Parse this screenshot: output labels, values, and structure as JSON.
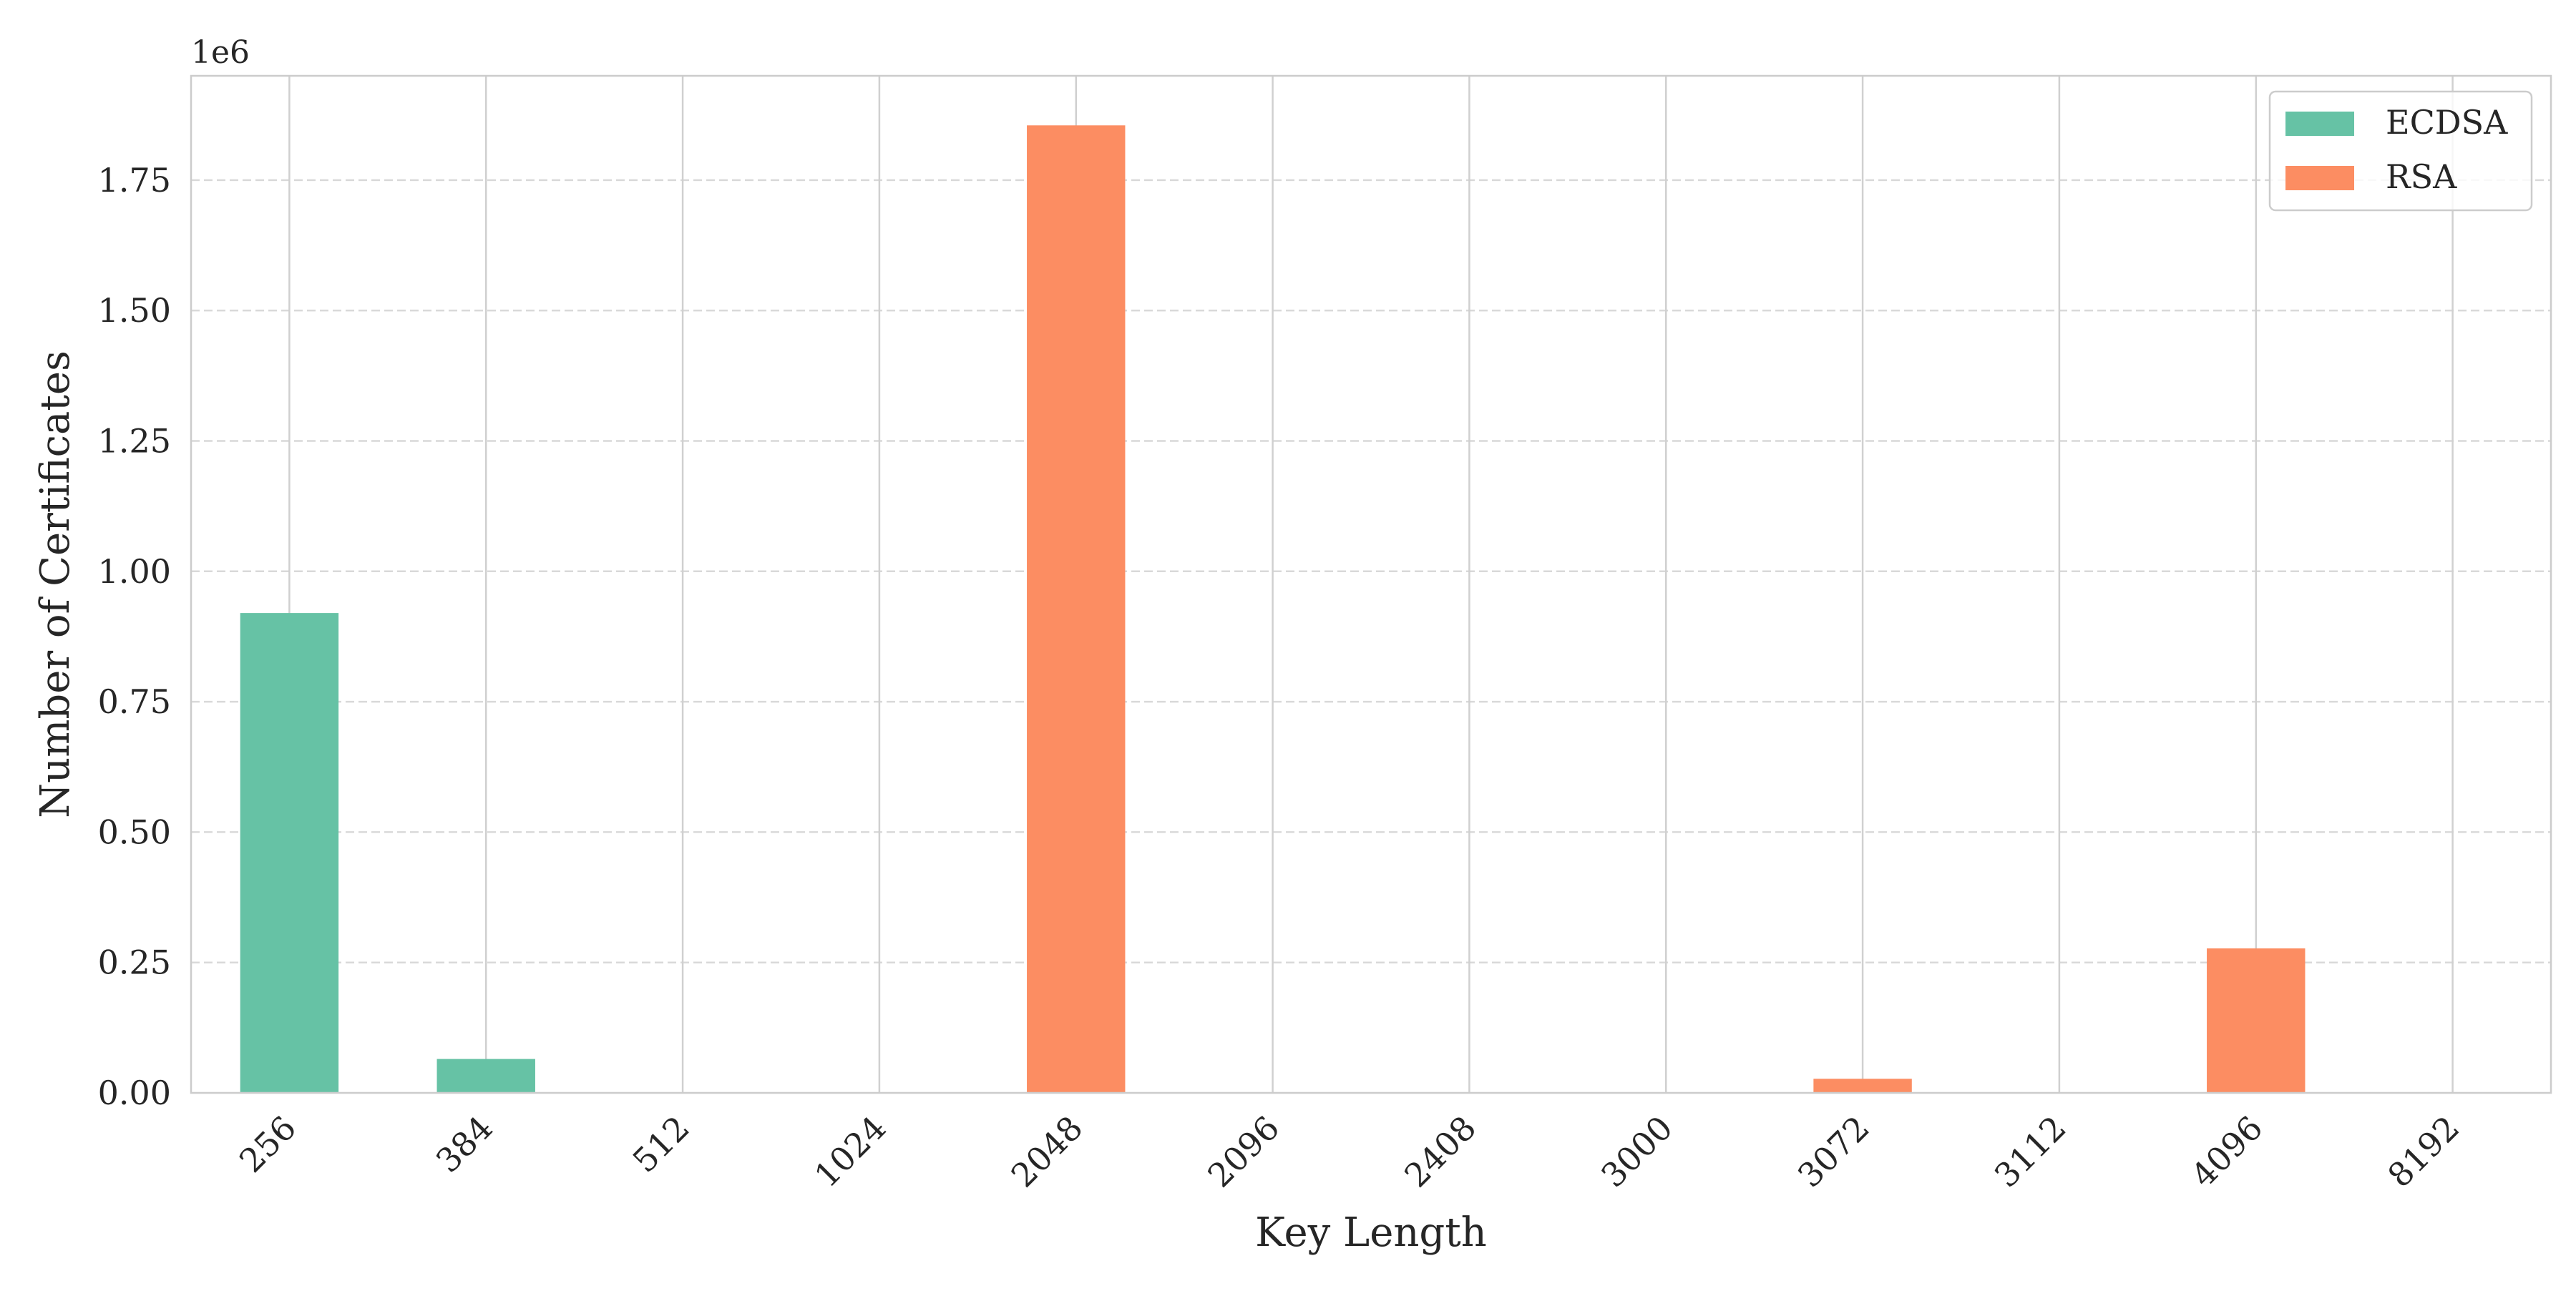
{
  "chart_data": {
    "type": "bar",
    "xlabel": "Key Length",
    "ylabel": "Number of Certificates",
    "offset_text": "1e6",
    "categories": [
      "256",
      "384",
      "512",
      "1024",
      "2048",
      "2096",
      "2408",
      "3000",
      "3072",
      "3112",
      "4096",
      "8192"
    ],
    "yticks": [
      "0.00",
      "0.25",
      "0.50",
      "0.75",
      "1.00",
      "1.25",
      "1.50",
      "1.75"
    ],
    "ylim": [
      0,
      1.95
    ],
    "grid": "y-dashed, x-solid",
    "legend_position": "top-right",
    "series": [
      {
        "name": "ECDSA",
        "color": "#66c2a5",
        "values": [
          0.92,
          0.065,
          0,
          0,
          0,
          0,
          0,
          0,
          0,
          0,
          0,
          0
        ]
      },
      {
        "name": "RSA",
        "color": "#fc8d62",
        "values": [
          0,
          0,
          0.0003,
          0.0008,
          1.855,
          0.0002,
          0.0002,
          0.0002,
          0.027,
          0.0002,
          0.277,
          0.0005
        ]
      }
    ]
  }
}
